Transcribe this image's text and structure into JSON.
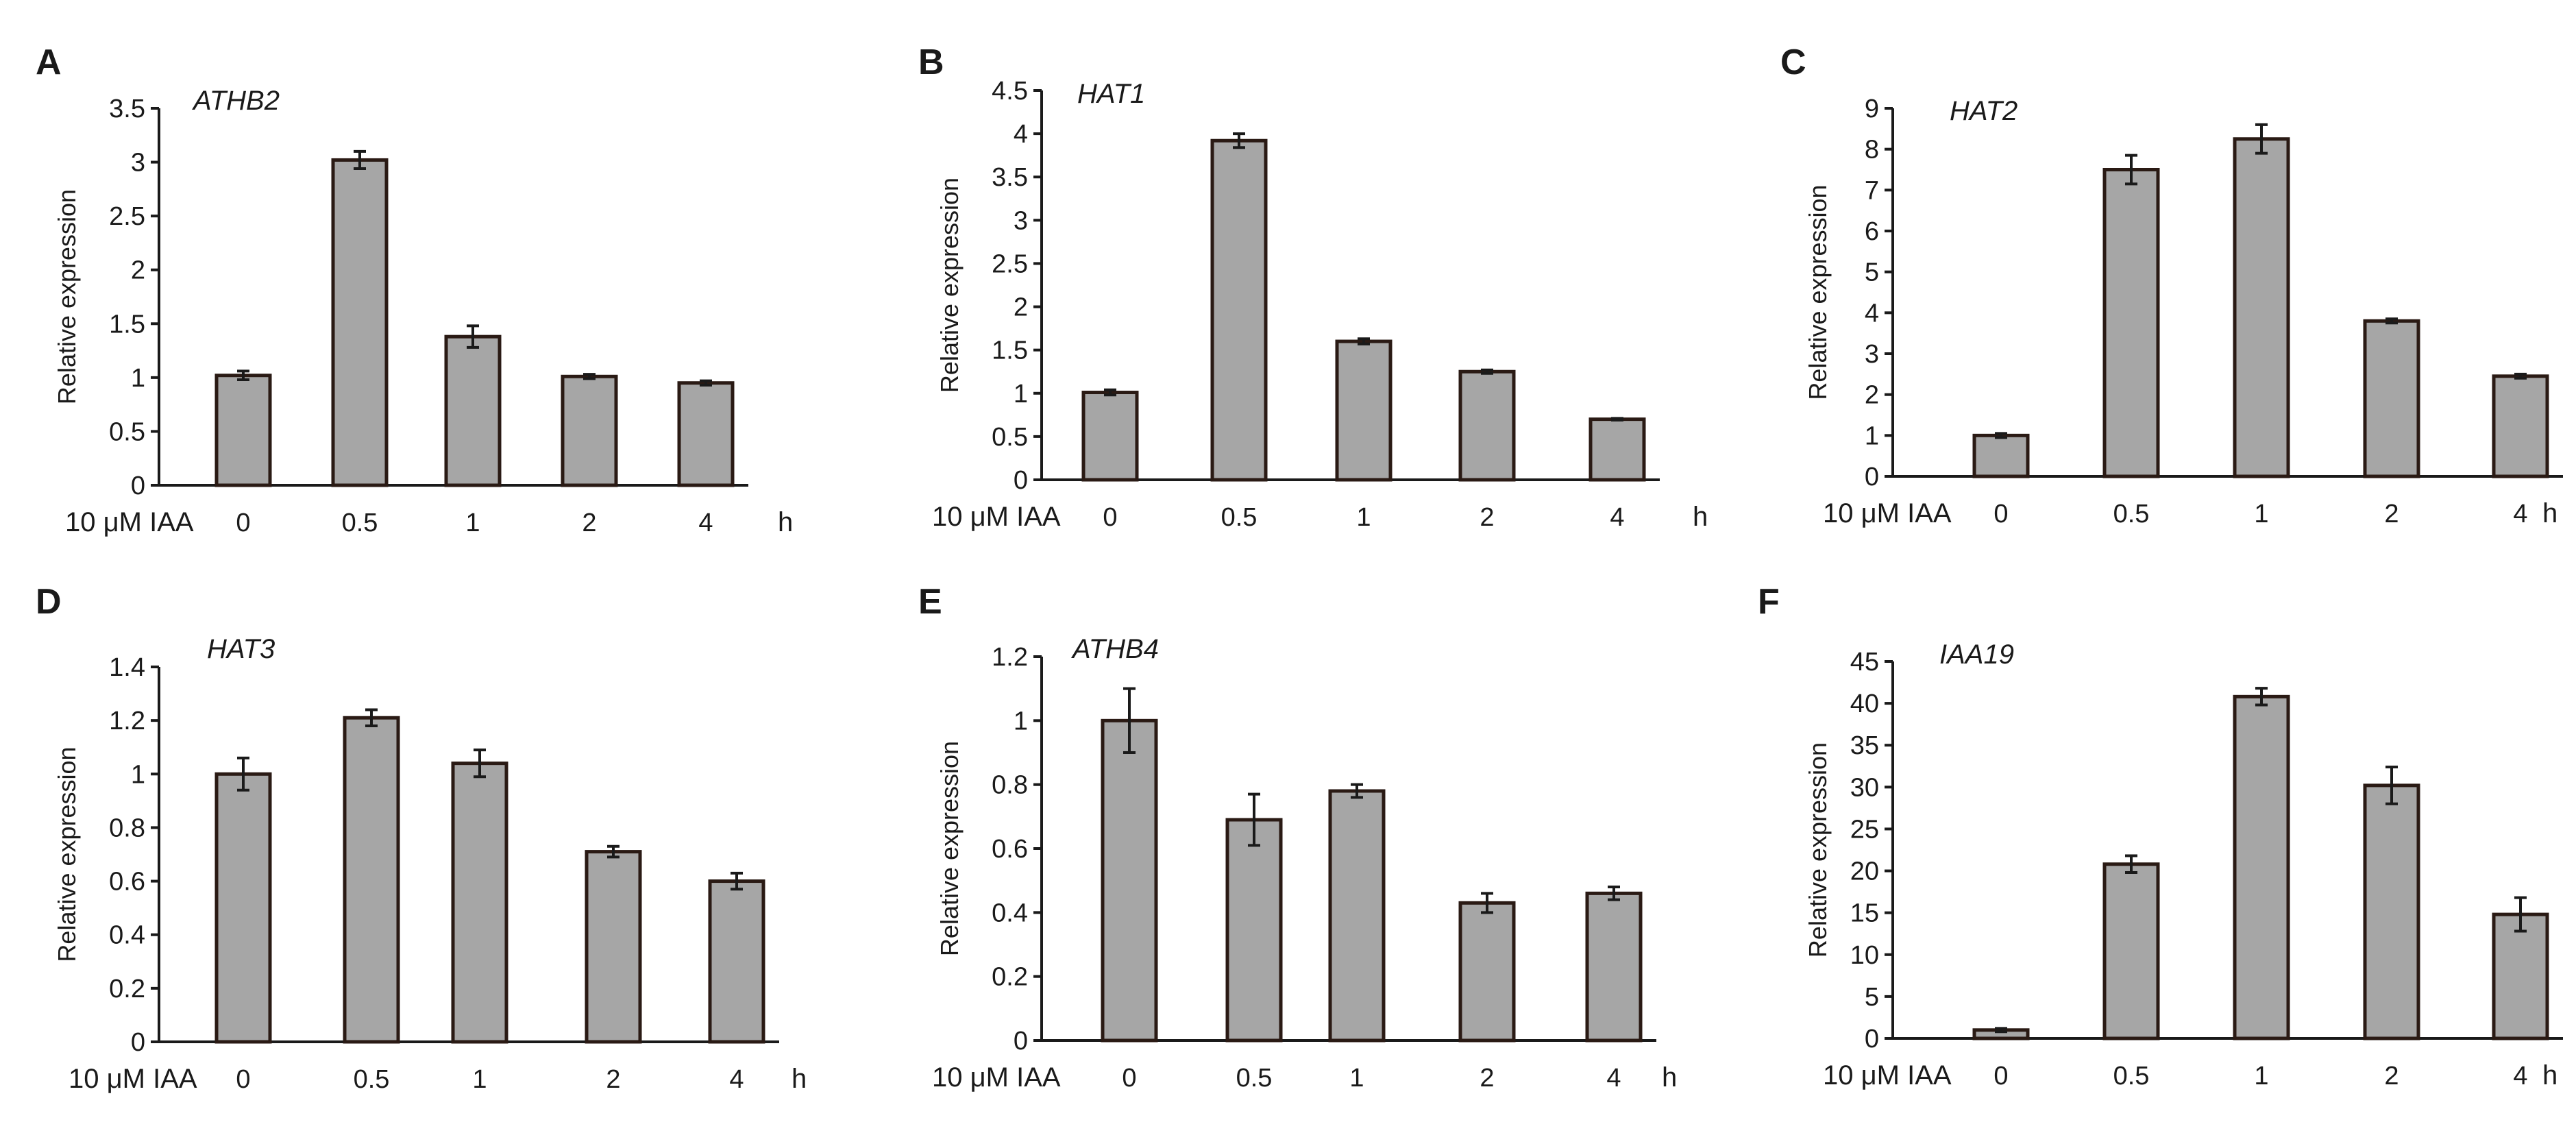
{
  "chart_data": [
    {
      "panel": "A",
      "type": "bar",
      "title": "ATHB2",
      "ylabel": "Relative expression",
      "xlabel_prefix": "10 μM IAA",
      "xlabel_unit": "h",
      "categories": [
        "0",
        "0.5",
        "1",
        "2",
        "4"
      ],
      "values": [
        1.02,
        3.02,
        1.38,
        1.01,
        0.95
      ],
      "errors": [
        0.04,
        0.08,
        0.1,
        0.02,
        0.02
      ],
      "ylim": [
        0,
        3.5
      ],
      "yticks": [
        "0",
        "0.5",
        "1",
        "1.5",
        "2",
        "2.5",
        "3",
        "3.5"
      ]
    },
    {
      "panel": "B",
      "type": "bar",
      "title": "HAT1",
      "ylabel": "Relative expression",
      "xlabel_prefix": "10 μM IAA",
      "xlabel_unit": "h",
      "categories": [
        "0",
        "0.5",
        "1",
        "2",
        "4"
      ],
      "values": [
        1.01,
        3.92,
        1.6,
        1.25,
        0.7
      ],
      "errors": [
        0.03,
        0.08,
        0.03,
        0.02,
        0.01
      ],
      "ylim": [
        0,
        4.5
      ],
      "yticks": [
        "0",
        "0.5",
        "1",
        "1.5",
        "2",
        "2.5",
        "3",
        "3.5",
        "4",
        "4.5"
      ]
    },
    {
      "panel": "C",
      "type": "bar",
      "title": "HAT2",
      "ylabel": "Relative expression",
      "xlabel_prefix": "10 μM IAA",
      "xlabel_unit": "h",
      "categories": [
        "0",
        "0.5",
        "1",
        "2",
        "4"
      ],
      "values": [
        1.0,
        7.5,
        8.25,
        3.8,
        2.45
      ],
      "errors": [
        0.05,
        0.35,
        0.35,
        0.05,
        0.05
      ],
      "ylim": [
        0,
        9
      ],
      "yticks": [
        "0",
        "1",
        "2",
        "3",
        "4",
        "5",
        "6",
        "7",
        "8",
        "9"
      ]
    },
    {
      "panel": "D",
      "type": "bar",
      "title": "HAT3",
      "ylabel": "Relative expression",
      "xlabel_prefix": "10 μM IAA",
      "xlabel_unit": "h",
      "categories": [
        "0",
        "0.5",
        "1",
        "2",
        "4"
      ],
      "values": [
        1.0,
        1.21,
        1.04,
        0.71,
        0.6
      ],
      "errors": [
        0.06,
        0.03,
        0.05,
        0.02,
        0.03
      ],
      "ylim": [
        0,
        1.4
      ],
      "yticks": [
        "0",
        "0.2",
        "0.4",
        "0.6",
        "0.8",
        "1",
        "1.2",
        "1.4"
      ]
    },
    {
      "panel": "E",
      "type": "bar",
      "title": "ATHB4",
      "ylabel": "Relative expression",
      "xlabel_prefix": "10 μM IAA",
      "xlabel_unit": "h",
      "categories": [
        "0",
        "0.5",
        "1",
        "2",
        "4"
      ],
      "values": [
        1.0,
        0.69,
        0.78,
        0.43,
        0.46
      ],
      "errors": [
        0.1,
        0.08,
        0.02,
        0.03,
        0.02
      ],
      "ylim": [
        0,
        1.2
      ],
      "yticks": [
        "0",
        "0.2",
        "0.4",
        "0.6",
        "0.8",
        "1",
        "1.2"
      ]
    },
    {
      "panel": "F",
      "type": "bar",
      "title": "IAA19",
      "ylabel": "Relative expression",
      "xlabel_prefix": "10 μM IAA",
      "xlabel_unit": "h",
      "categories": [
        "0",
        "0.5",
        "1",
        "2",
        "4"
      ],
      "values": [
        1.0,
        20.8,
        40.8,
        30.2,
        14.8
      ],
      "errors": [
        0.2,
        1.0,
        1.0,
        2.2,
        2.0
      ],
      "ylim": [
        0,
        45
      ],
      "yticks": [
        "0",
        "5",
        "10",
        "15",
        "20",
        "25",
        "30",
        "35",
        "40",
        "45"
      ]
    }
  ]
}
